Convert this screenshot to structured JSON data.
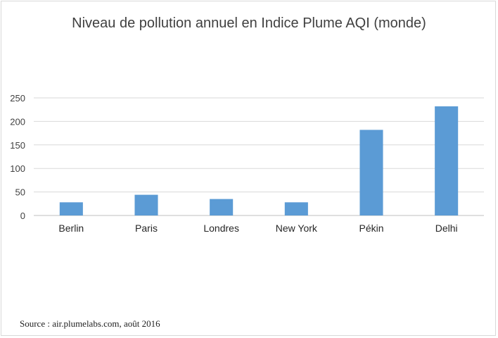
{
  "chart_data": {
    "type": "bar",
    "title": "Niveau de pollution annuel en Indice Plume AQI (monde)",
    "categories": [
      "Berlin",
      "Paris",
      "Londres",
      "New York",
      "Pékin",
      "Delhi"
    ],
    "values": [
      28,
      44,
      35,
      28,
      182,
      232
    ],
    "xlabel": "",
    "ylabel": "",
    "ylim": [
      0,
      250
    ],
    "yticks": [
      0,
      50,
      100,
      150,
      200,
      250
    ],
    "grid": true,
    "legend": "none",
    "bar_color": "#5b9bd5"
  },
  "source_note": "Source : air.plumelabs.com, août 2016"
}
